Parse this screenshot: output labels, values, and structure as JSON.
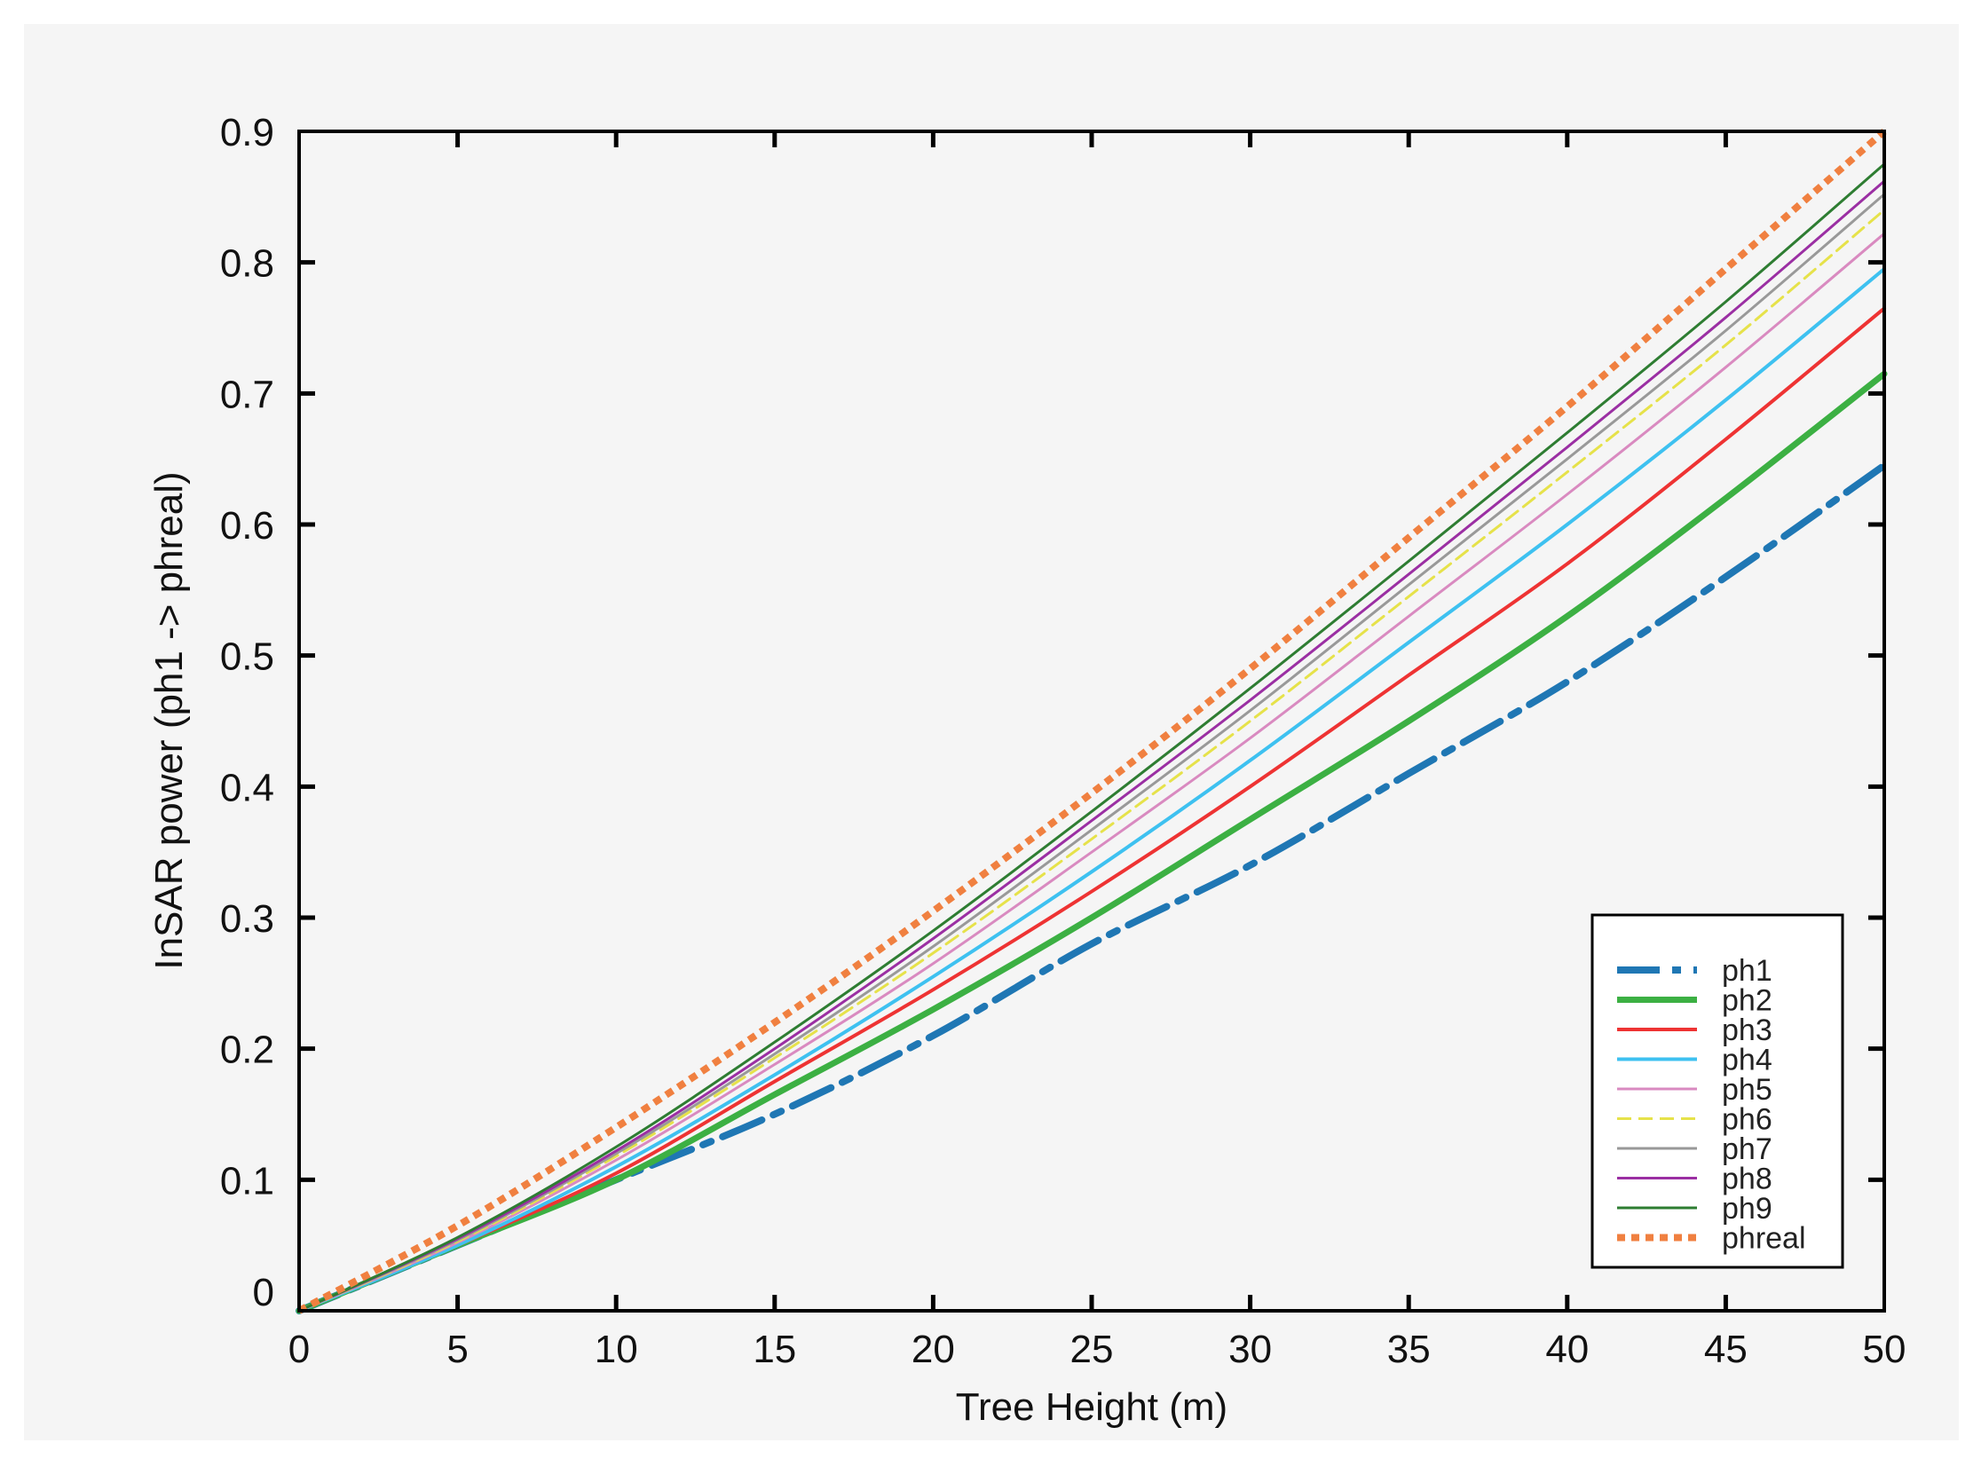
{
  "chart_data": {
    "type": "line",
    "title": "",
    "xlabel": "Tree Height (m)",
    "ylabel": "InSAR power (ph1 -> phreal)",
    "xlim": [
      0,
      50
    ],
    "ylim": [
      0,
      0.9
    ],
    "xticks": [
      "0",
      "5",
      "10",
      "15",
      "20",
      "25",
      "30",
      "35",
      "40",
      "45",
      "50"
    ],
    "yticks": [
      "0",
      "0.1",
      "0.2",
      "0.3",
      "0.4",
      "0.5",
      "0.6",
      "0.7",
      "0.8",
      "0.9"
    ],
    "grid": false,
    "legend_position": "bottom-right",
    "x": [
      0,
      5,
      10,
      15,
      20,
      25,
      30,
      35,
      40,
      45,
      50
    ],
    "series": [
      {
        "name": "ph1",
        "color": "#1f77b4",
        "style": "dashdot",
        "width": 8,
        "values": [
          0,
          0.05,
          0.1,
          0.15,
          0.21,
          0.28,
          0.34,
          0.41,
          0.48,
          0.56,
          0.645
        ]
      },
      {
        "name": "ph2",
        "color": "#3cb043",
        "style": "solid",
        "width": 7,
        "values": [
          0,
          0.05,
          0.1,
          0.165,
          0.23,
          0.3,
          0.375,
          0.45,
          0.53,
          0.62,
          0.715
        ]
      },
      {
        "name": "ph3",
        "color": "#ee3333",
        "style": "solid",
        "width": 4,
        "values": [
          0,
          0.05,
          0.105,
          0.175,
          0.245,
          0.32,
          0.4,
          0.485,
          0.57,
          0.665,
          0.765
        ]
      },
      {
        "name": "ph4",
        "color": "#3ec1f0",
        "style": "solid",
        "width": 4,
        "values": [
          0,
          0.05,
          0.11,
          0.18,
          0.255,
          0.335,
          0.42,
          0.51,
          0.6,
          0.695,
          0.795
        ]
      },
      {
        "name": "ph5",
        "color": "#d98ac0",
        "style": "solid",
        "width": 3,
        "values": [
          0,
          0.052,
          0.115,
          0.188,
          0.265,
          0.35,
          0.437,
          0.53,
          0.623,
          0.72,
          0.822
        ]
      },
      {
        "name": "ph6",
        "color": "#e6e24a",
        "style": "dashed",
        "width": 3,
        "values": [
          0,
          0.053,
          0.118,
          0.193,
          0.273,
          0.36,
          0.45,
          0.545,
          0.64,
          0.737,
          0.84
        ]
      },
      {
        "name": "ph7",
        "color": "#999999",
        "style": "solid",
        "width": 3,
        "values": [
          0,
          0.054,
          0.12,
          0.196,
          0.278,
          0.367,
          0.458,
          0.554,
          0.65,
          0.748,
          0.852
        ]
      },
      {
        "name": "ph8",
        "color": "#9b2fa3",
        "style": "solid",
        "width": 3,
        "values": [
          0,
          0.055,
          0.122,
          0.2,
          0.284,
          0.374,
          0.466,
          0.562,
          0.659,
          0.758,
          0.862
        ]
      },
      {
        "name": "ph9",
        "color": "#2e7d32",
        "style": "solid",
        "width": 3,
        "values": [
          0,
          0.056,
          0.125,
          0.205,
          0.29,
          0.381,
          0.475,
          0.572,
          0.67,
          0.77,
          0.875
        ]
      },
      {
        "name": "phreal",
        "color": "#f08040",
        "style": "dotted",
        "width": 8,
        "values": [
          0,
          0.065,
          0.14,
          0.22,
          0.305,
          0.395,
          0.49,
          0.59,
          0.69,
          0.795,
          0.9
        ]
      }
    ]
  }
}
